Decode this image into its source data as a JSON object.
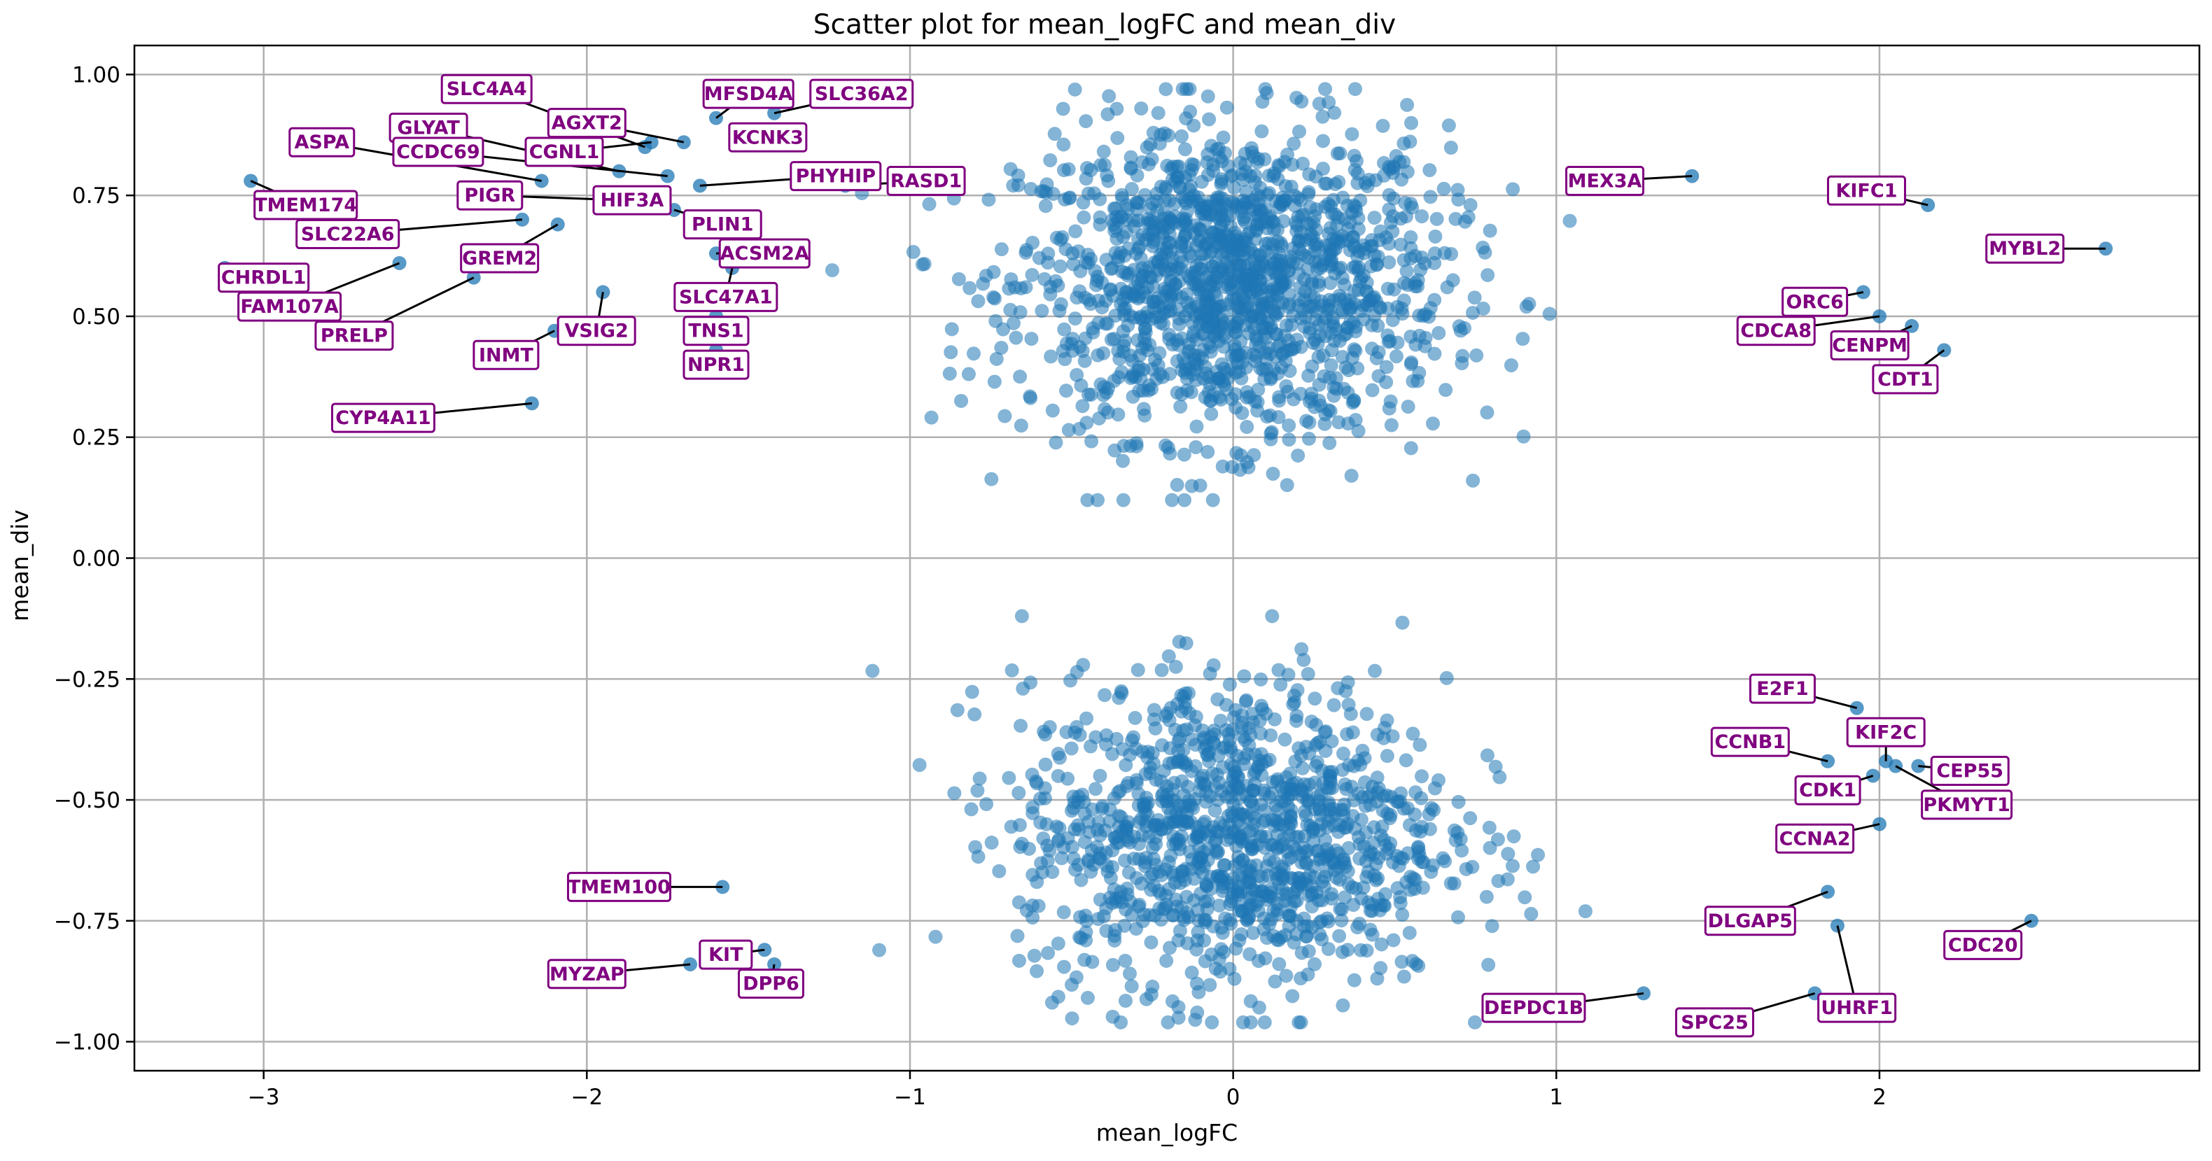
{
  "chart_data": {
    "type": "scatter",
    "title": "Scatter plot for mean_logFC and mean_div",
    "xlabel": "mean_logFC",
    "ylabel": "mean_div",
    "xlim": [
      -3.4,
      2.99
    ],
    "ylim": [
      -1.06,
      1.06
    ],
    "grid": true,
    "point_color": "#1f77b4",
    "label_color": "#800080",
    "x_ticks": [
      -3,
      -2,
      -1,
      0,
      1,
      2
    ],
    "x_tick_labels": [
      "−3",
      "−2",
      "−1",
      "0",
      "1",
      "2"
    ],
    "y_ticks": [
      1.0,
      0.75,
      0.5,
      0.25,
      0.0,
      -0.25,
      -0.5,
      -0.75,
      -1.0
    ],
    "y_tick_labels": [
      "1.00",
      "0.75",
      "0.50",
      "0.25",
      "0.00",
      "−0.25",
      "−0.50",
      "−0.75",
      "−1.00"
    ],
    "clusters": [
      {
        "name": "upper",
        "center_x": 0.0,
        "center_y": 0.57,
        "spread_x": 0.33,
        "spread_y": 0.16,
        "count": 1500
      },
      {
        "name": "lower",
        "center_x": 0.0,
        "center_y": -0.57,
        "spread_x": 0.33,
        "spread_y": 0.16,
        "count": 1200
      }
    ],
    "labeled_points": [
      {
        "gene": "TMEM174",
        "x": -3.04,
        "y": 0.78,
        "lx": -2.87,
        "ly": 0.73
      },
      {
        "gene": "SLC22A6",
        "x": -2.2,
        "y": 0.7,
        "lx": -2.74,
        "ly": 0.67
      },
      {
        "gene": "CHRDL1",
        "x": -3.12,
        "y": 0.6,
        "lx": -3.0,
        "ly": 0.58
      },
      {
        "gene": "FAM107A",
        "x": -2.58,
        "y": 0.61,
        "lx": -2.92,
        "ly": 0.52
      },
      {
        "gene": "PRELP",
        "x": -2.35,
        "y": 0.58,
        "lx": -2.72,
        "ly": 0.46
      },
      {
        "gene": "GREM2",
        "x": -2.09,
        "y": 0.69,
        "lx": -2.27,
        "ly": 0.62
      },
      {
        "gene": "ASPA",
        "x": -2.14,
        "y": 0.78,
        "lx": -2.82,
        "ly": 0.86
      },
      {
        "gene": "GLYAT",
        "x": -1.9,
        "y": 0.8,
        "lx": -2.49,
        "ly": 0.89
      },
      {
        "gene": "CCDC69",
        "x": -1.75,
        "y": 0.79,
        "lx": -2.46,
        "ly": 0.84
      },
      {
        "gene": "SLC4A4",
        "x": -1.82,
        "y": 0.85,
        "lx": -2.31,
        "ly": 0.97
      },
      {
        "gene": "AGXT2",
        "x": -1.7,
        "y": 0.86,
        "lx": -2.0,
        "ly": 0.9
      },
      {
        "gene": "CGNL1",
        "x": -1.8,
        "y": 0.86,
        "lx": -2.07,
        "ly": 0.84
      },
      {
        "gene": "PIGR",
        "x": -1.88,
        "y": 0.74,
        "lx": -2.3,
        "ly": 0.75
      },
      {
        "gene": "HIF3A",
        "x": -1.8,
        "y": 0.74,
        "lx": -1.86,
        "ly": 0.74
      },
      {
        "gene": "PLIN1",
        "x": -1.73,
        "y": 0.72,
        "lx": -1.58,
        "ly": 0.69
      },
      {
        "gene": "MFSD4A",
        "x": -1.6,
        "y": 0.91,
        "lx": -1.5,
        "ly": 0.96
      },
      {
        "gene": "SLC36A2",
        "x": -1.42,
        "y": 0.92,
        "lx": -1.15,
        "ly": 0.96
      },
      {
        "gene": "KCNK3",
        "x": -1.5,
        "y": 0.88,
        "lx": -1.44,
        "ly": 0.87
      },
      {
        "gene": "PHYHIP",
        "x": -1.65,
        "y": 0.77,
        "lx": -1.23,
        "ly": 0.79
      },
      {
        "gene": "RASD1",
        "x": -1.2,
        "y": 0.77,
        "lx": -0.95,
        "ly": 0.78
      },
      {
        "gene": "ACSM2A",
        "x": -1.6,
        "y": 0.63,
        "lx": -1.45,
        "ly": 0.63
      },
      {
        "gene": "SLC47A1",
        "x": -1.55,
        "y": 0.6,
        "lx": -1.57,
        "ly": 0.54
      },
      {
        "gene": "TNS1",
        "x": -1.6,
        "y": 0.5,
        "lx": -1.6,
        "ly": 0.47
      },
      {
        "gene": "NPR1",
        "x": -1.6,
        "y": 0.43,
        "lx": -1.6,
        "ly": 0.4
      },
      {
        "gene": "VSIG2",
        "x": -1.95,
        "y": 0.55,
        "lx": -1.97,
        "ly": 0.47
      },
      {
        "gene": "INMT",
        "x": -2.1,
        "y": 0.47,
        "lx": -2.25,
        "ly": 0.42
      },
      {
        "gene": "CYP4A11",
        "x": -2.17,
        "y": 0.32,
        "lx": -2.63,
        "ly": 0.29
      },
      {
        "gene": "MEX3A",
        "x": 1.42,
        "y": 0.79,
        "lx": 1.15,
        "ly": 0.78
      },
      {
        "gene": "KIFC1",
        "x": 2.15,
        "y": 0.73,
        "lx": 1.96,
        "ly": 0.76
      },
      {
        "gene": "MYBL2",
        "x": 2.7,
        "y": 0.64,
        "lx": 2.45,
        "ly": 0.64
      },
      {
        "gene": "ORC6",
        "x": 1.95,
        "y": 0.55,
        "lx": 1.8,
        "ly": 0.53
      },
      {
        "gene": "CDCA8",
        "x": 2.0,
        "y": 0.5,
        "lx": 1.68,
        "ly": 0.47
      },
      {
        "gene": "CENPM",
        "x": 2.1,
        "y": 0.48,
        "lx": 1.97,
        "ly": 0.44
      },
      {
        "gene": "CDT1",
        "x": 2.2,
        "y": 0.43,
        "lx": 2.08,
        "ly": 0.37
      },
      {
        "gene": "E2F1",
        "x": 1.93,
        "y": -0.31,
        "lx": 1.7,
        "ly": -0.27
      },
      {
        "gene": "KIF2C",
        "x": 2.02,
        "y": -0.42,
        "lx": 2.02,
        "ly": -0.36
      },
      {
        "gene": "CCNB1",
        "x": 1.84,
        "y": -0.42,
        "lx": 1.6,
        "ly": -0.38
      },
      {
        "gene": "CEP55",
        "x": 2.12,
        "y": -0.43,
        "lx": 2.28,
        "ly": -0.44
      },
      {
        "gene": "CDK1",
        "x": 1.98,
        "y": -0.45,
        "lx": 1.84,
        "ly": -0.48
      },
      {
        "gene": "PKMYT1",
        "x": 2.05,
        "y": -0.43,
        "lx": 2.27,
        "ly": -0.51
      },
      {
        "gene": "CCNA2",
        "x": 2.0,
        "y": -0.55,
        "lx": 1.8,
        "ly": -0.58
      },
      {
        "gene": "TMEM100",
        "x": -1.58,
        "y": -0.68,
        "lx": -1.9,
        "ly": -0.68
      },
      {
        "gene": "DLGAP5",
        "x": 1.84,
        "y": -0.69,
        "lx": 1.6,
        "ly": -0.75
      },
      {
        "gene": "CDC20",
        "x": 2.47,
        "y": -0.75,
        "lx": 2.32,
        "ly": -0.8
      },
      {
        "gene": "KIT",
        "x": -1.45,
        "y": -0.81,
        "lx": -1.57,
        "ly": -0.82
      },
      {
        "gene": "MYZAP",
        "x": -1.68,
        "y": -0.84,
        "lx": -2.0,
        "ly": -0.86
      },
      {
        "gene": "DPP6",
        "x": -1.42,
        "y": -0.84,
        "lx": -1.43,
        "ly": -0.88
      },
      {
        "gene": "DEPDC1B",
        "x": 1.27,
        "y": -0.9,
        "lx": 0.93,
        "ly": -0.93
      },
      {
        "gene": "SPC25",
        "x": 1.8,
        "y": -0.9,
        "lx": 1.49,
        "ly": -0.96
      },
      {
        "gene": "UHRF1",
        "x": 1.87,
        "y": -0.76,
        "lx": 1.93,
        "ly": -0.93
      }
    ]
  }
}
